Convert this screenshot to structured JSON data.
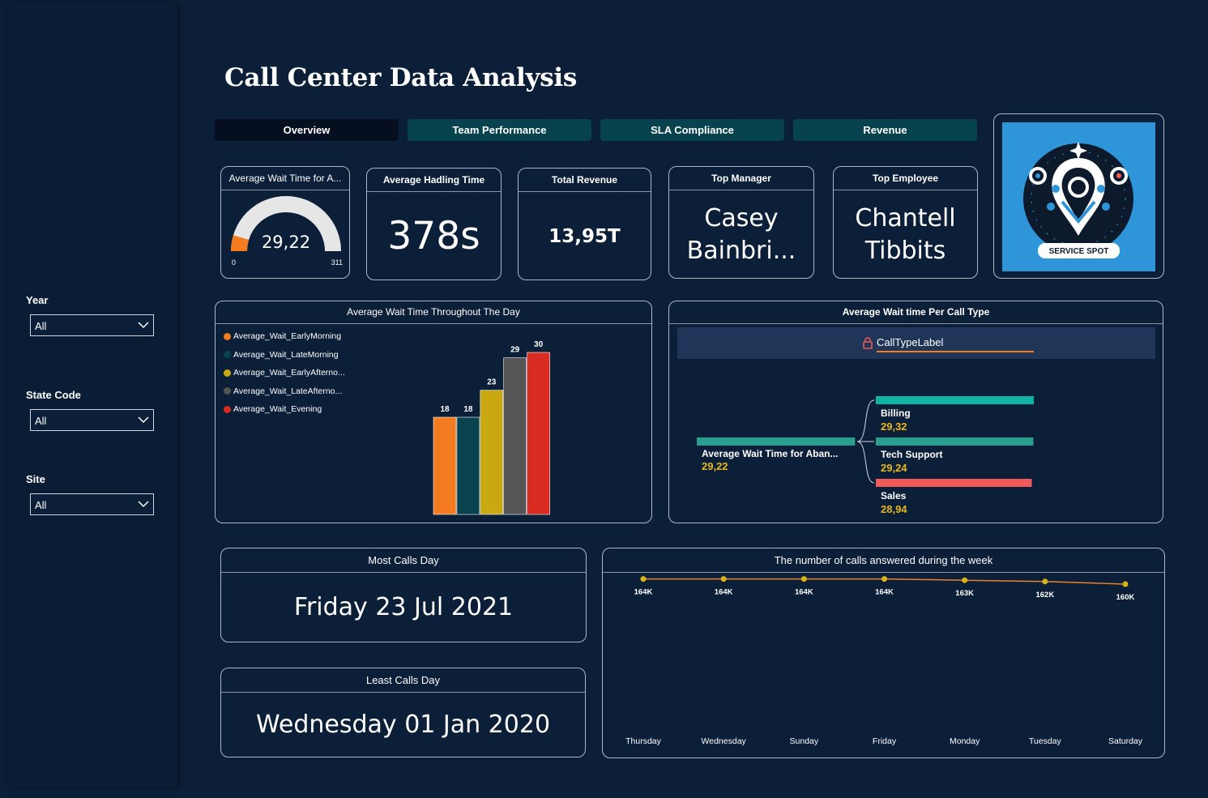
{
  "filters": [
    {
      "label": "Year",
      "value": "All"
    },
    {
      "label": "State Code",
      "value": "All"
    },
    {
      "label": "Site",
      "value": "All"
    }
  ],
  "title": "Call Center Data Analysis",
  "tabs": [
    {
      "label": "Overview",
      "active": true
    },
    {
      "label": "Team Performance",
      "active": false
    },
    {
      "label": "SLA Compliance",
      "active": false
    },
    {
      "label": "Revenue",
      "active": false
    }
  ],
  "kpis": {
    "gauge": {
      "title": "Average Wait Time for A...",
      "value": 29.22,
      "value_text": "29,22",
      "min": 0,
      "min_text": "0",
      "max": 311,
      "max_text": "311",
      "fill_color": "#f47b20"
    },
    "handling": {
      "title": "Average Hadling Time",
      "value": "378s"
    },
    "revenue": {
      "title": "Total Revenue",
      "value": "13,95T"
    },
    "manager": {
      "title": "Top Manager",
      "line1": "Casey",
      "line2": "Bainbri..."
    },
    "employee": {
      "title": "Top Employee",
      "line1": "Chantell",
      "line2": "Tibbits"
    }
  },
  "logo": {
    "text": "SERVICE SPOT",
    "background": "#2e96d8"
  },
  "wait_chart": {
    "title": "Average Wait Time Throughout The Day",
    "chart_data": {
      "type": "bar",
      "series": [
        {
          "name": "Average_Wait_EarlyMorning",
          "value": 18,
          "color": "#f47b20"
        },
        {
          "name": "Average_Wait_LateMorning",
          "value": 18,
          "color": "#08434f"
        },
        {
          "name": "Average_Wait_EarlyAfterno...",
          "value": 23,
          "color": "#c9a812"
        },
        {
          "name": "Average_Wait_LateAfterno...",
          "value": 29,
          "color": "#555555"
        },
        {
          "name": "Average_Wait_Evening",
          "value": 30,
          "color": "#d92b22"
        }
      ],
      "ylim": [
        0,
        30
      ]
    }
  },
  "calltype_chart": {
    "title": "Average Wait time Per Call Type",
    "header_label": "CallTypeLabel",
    "root": {
      "label": "Average Wait Time for Aban...",
      "value": "29,22"
    },
    "chart_data": {
      "type": "bar",
      "categories": [
        "Billing",
        "Tech Support",
        "Sales"
      ],
      "values": [
        29.32,
        29.24,
        28.94
      ],
      "value_text": [
        "29,32",
        "29,24",
        "28,94"
      ],
      "colors": [
        "#10b3a2",
        "#2a9d8f",
        "#f05a5a"
      ]
    }
  },
  "most_calls": {
    "title": "Most Calls Day",
    "value": "Friday 23 Jul 2021"
  },
  "least_calls": {
    "title": "Least Calls Day",
    "value": "Wednesday 01 Jan 2020"
  },
  "week_chart": {
    "title": "The number of calls answered during the week",
    "chart_data": {
      "type": "line",
      "categories": [
        "Thursday",
        "Wednesday",
        "Sunday",
        "Friday",
        "Monday",
        "Tuesday",
        "Saturday"
      ],
      "values": [
        164,
        164,
        164,
        164,
        163,
        162,
        160
      ],
      "value_text": [
        "164K",
        "164K",
        "164K",
        "164K",
        "163K",
        "162K",
        "160K"
      ],
      "line_color": "#e8822a",
      "marker_color": "#d8b414"
    }
  }
}
